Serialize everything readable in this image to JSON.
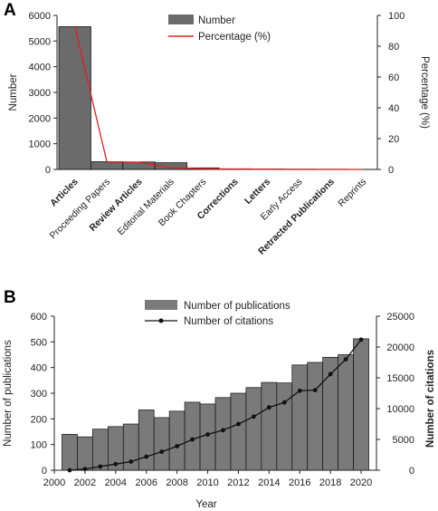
{
  "chart_data": [
    {
      "panel": "A",
      "type": "bar",
      "categories": [
        "Articles",
        "Proceeding Papers",
        "Review Articles",
        "Editorial Materials",
        "Book Chapters",
        "Corrections",
        "Letters",
        "Early Access",
        "Retracted Publications",
        "Reprints"
      ],
      "bold_categories": [
        "Articles",
        "Review Articles",
        "Corrections",
        "Letters",
        "Retracted Publications"
      ],
      "series": [
        {
          "name": "Number",
          "type": "bar",
          "axis": "left",
          "color": "#6b6b6b",
          "values": [
            5560,
            300,
            290,
            260,
            60,
            25,
            20,
            10,
            5,
            2
          ]
        },
        {
          "name": "Percentage (%)",
          "type": "line",
          "axis": "right",
          "color": "#e02020",
          "values": [
            92.8,
            4.9,
            4.6,
            1.2,
            0.4,
            0.2,
            0.1,
            0.05,
            0.03,
            0.02
          ]
        }
      ],
      "xlabel": "",
      "ylabel": "Number",
      "ylabel_right": "Percentage (%)",
      "ylim": [
        0,
        6000
      ],
      "ylim_right": [
        0,
        100
      ],
      "yticks": [
        0,
        1000,
        2000,
        3000,
        4000,
        5000,
        6000
      ],
      "yticks_right": [
        0,
        20,
        40,
        60,
        80,
        100
      ],
      "legend": "top-center",
      "grid": false
    },
    {
      "panel": "B",
      "type": "bar",
      "x": [
        2001,
        2002,
        2003,
        2004,
        2005,
        2006,
        2007,
        2008,
        2009,
        2010,
        2011,
        2012,
        2013,
        2014,
        2015,
        2016,
        2017,
        2018,
        2019,
        2020
      ],
      "series": [
        {
          "name": "Number of publications",
          "type": "bar",
          "axis": "left",
          "color": "#7a7a7a",
          "values": [
            140,
            130,
            160,
            170,
            180,
            235,
            205,
            230,
            265,
            258,
            283,
            300,
            322,
            342,
            340,
            410,
            420,
            440,
            450,
            512
          ]
        },
        {
          "name": "Number of citations",
          "type": "line",
          "axis": "right",
          "color": "#111111",
          "values": [
            0,
            200,
            600,
            1000,
            1400,
            2200,
            3000,
            3900,
            5000,
            5800,
            6500,
            7500,
            8700,
            10200,
            11000,
            12900,
            13000,
            15600,
            18000,
            21200
          ]
        }
      ],
      "xlabel": "Year",
      "ylabel": "Number of publications",
      "ylabel_right": "Number of citations",
      "xlim": [
        2000,
        2021
      ],
      "xticks": [
        2000,
        2002,
        2004,
        2006,
        2008,
        2010,
        2012,
        2014,
        2016,
        2018,
        2020
      ],
      "ylim": [
        0,
        600
      ],
      "ylim_right": [
        0,
        25000
      ],
      "yticks": [
        0,
        100,
        200,
        300,
        400,
        500,
        600
      ],
      "yticks_right": [
        0,
        5000,
        10000,
        15000,
        20000,
        25000
      ],
      "legend": "top-center",
      "grid": false
    }
  ]
}
